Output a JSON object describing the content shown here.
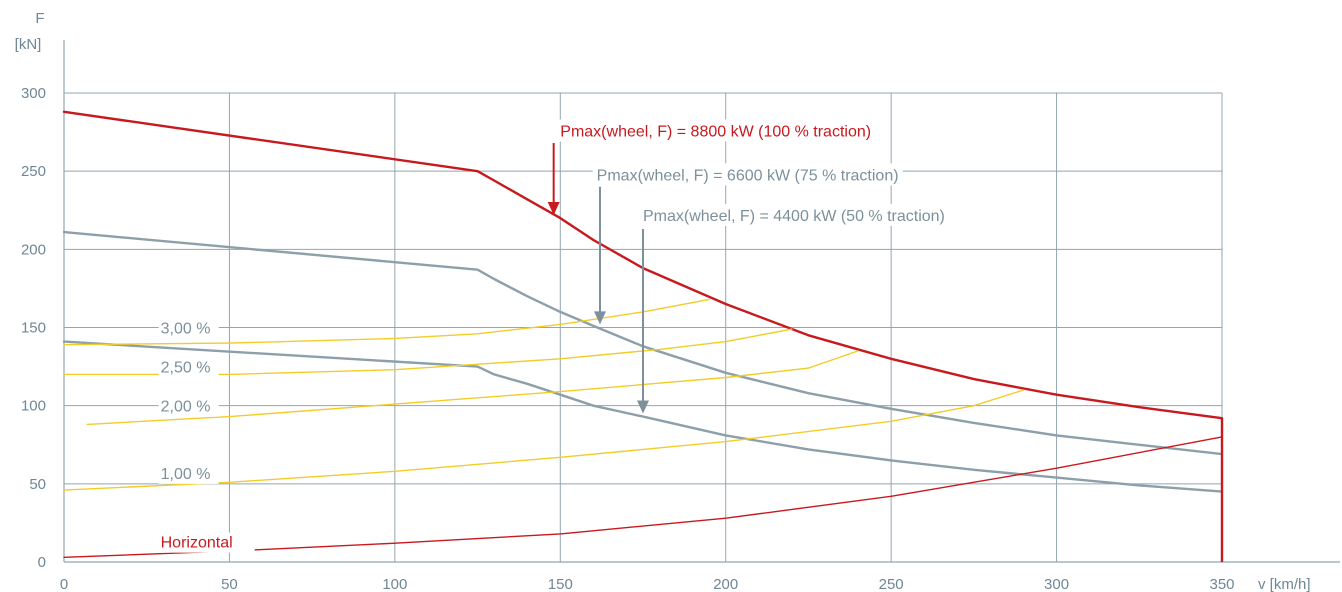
{
  "chart_data": {
    "type": "line",
    "xlabel": "v [km/h]",
    "ylabel_line1": "F",
    "ylabel_line2": "[kN]",
    "xlim": [
      0,
      350
    ],
    "ylim": [
      0,
      300
    ],
    "x_ticks": [
      "0",
      "50",
      "100",
      "150",
      "200",
      "250",
      "300",
      "350"
    ],
    "y_ticks": [
      "0",
      "50",
      "100",
      "150",
      "200",
      "250",
      "300"
    ],
    "grid": true,
    "series": [
      {
        "name": "Pmax(wheel, F) = 8800 kW (100 % traction)",
        "color": "#c8191e",
        "width": 2.4,
        "x": [
          0,
          125,
          130,
          140,
          150,
          160,
          175,
          200,
          225,
          250,
          275,
          300,
          325,
          350
        ],
        "y": [
          288,
          250,
          244,
          232,
          220,
          206,
          188,
          165,
          145,
          130,
          117,
          107,
          99,
          92
        ]
      },
      {
        "name": "Pmax(wheel, F) = 6600 kW (75 % traction)",
        "color": "#8d9fa9",
        "width": 2.4,
        "x": [
          0,
          125,
          130,
          140,
          150,
          160,
          175,
          200,
          225,
          250,
          275,
          300,
          325,
          350
        ],
        "y": [
          211,
          187,
          181,
          170,
          160,
          151,
          138,
          121,
          108,
          98,
          89,
          81,
          75,
          69
        ]
      },
      {
        "name": "Pmax(wheel, F) = 4400 kW (50 % traction)",
        "color": "#8d9fa9",
        "width": 2.4,
        "x": [
          0,
          125,
          130,
          140,
          150,
          160,
          175,
          200,
          225,
          250,
          275,
          300,
          325,
          350
        ],
        "y": [
          141,
          125,
          120,
          114,
          107,
          100,
          93,
          81,
          72,
          65,
          59,
          54,
          49,
          45
        ]
      },
      {
        "name": "3,00 %",
        "color": "#f2cc28",
        "width": 1.4,
        "x": [
          0,
          50,
          100,
          125,
          150,
          175,
          195
        ],
        "y": [
          139,
          140,
          143,
          146,
          152,
          160,
          168
        ]
      },
      {
        "name": "2,50 %",
        "color": "#f2cc28",
        "width": 1.4,
        "x": [
          0,
          50,
          100,
          150,
          180,
          200,
          220
        ],
        "y": [
          120,
          120,
          123,
          130,
          136,
          141,
          149
        ]
      },
      {
        "name": "2,00 %",
        "color": "#f2cc28",
        "width": 1.4,
        "x": [
          7,
          50,
          100,
          150,
          200,
          225,
          240
        ],
        "y": [
          88,
          93,
          101,
          109,
          118,
          124,
          135
        ]
      },
      {
        "name": "1,00 %",
        "color": "#f2cc28",
        "width": 1.4,
        "x": [
          0,
          50,
          100,
          150,
          200,
          250,
          275,
          290
        ],
        "y": [
          46,
          51,
          58,
          67,
          77,
          90,
          100,
          110
        ]
      },
      {
        "name": "Horizontal",
        "color": "#c8191e",
        "width": 1.4,
        "x": [
          0,
          50,
          100,
          150,
          200,
          250,
          300,
          350
        ],
        "y": [
          3,
          7,
          12,
          18,
          28,
          42,
          60,
          80
        ]
      }
    ],
    "annotations": [
      {
        "text": "Pmax(wheel, F) = 8800 kW (100 % traction)",
        "color": "#c8191e",
        "x": 150,
        "y": 276,
        "arrow_x": 148,
        "arrow_from": 268,
        "arrow_to": 222
      },
      {
        "text": "Pmax(wheel, F) = 6600 kW (75 % traction)",
        "color": "#7d909b",
        "x": 161,
        "y": 248,
        "arrow_x": 162,
        "arrow_from": 240,
        "arrow_to": 152
      },
      {
        "text": "Pmax(wheel, F) = 4400 kW (50 % traction)",
        "color": "#7d909b",
        "x": 175,
        "y": 222,
        "arrow_x": 175,
        "arrow_from": 213,
        "arrow_to": 95
      }
    ],
    "grade_labels": [
      {
        "text": "3,00 %",
        "x": 28,
        "y": 150
      },
      {
        "text": "2,50 %",
        "x": 28,
        "y": 125
      },
      {
        "text": "2,00 %",
        "x": 28,
        "y": 100
      },
      {
        "text": "1,00 %",
        "x": 28,
        "y": 57
      }
    ],
    "horizontal_label": {
      "text": "Horizontal",
      "color": "#c8191e",
      "x": 28,
      "y": 13
    },
    "vertical_cutoff_x": 350
  }
}
